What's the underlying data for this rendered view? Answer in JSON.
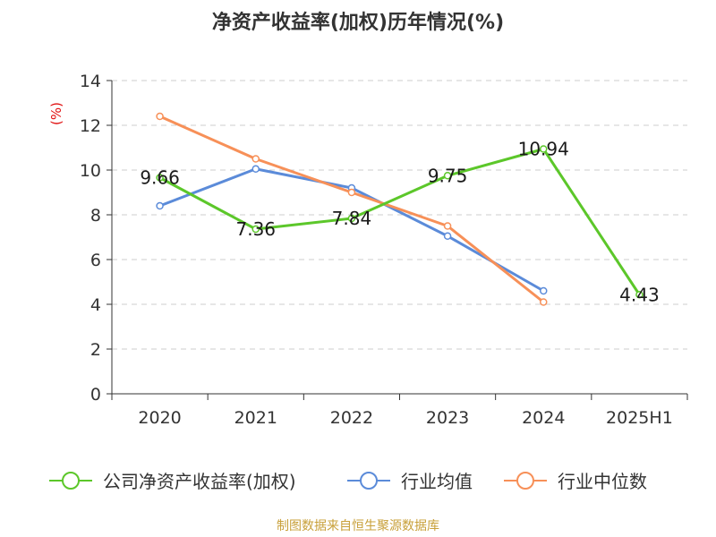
{
  "chart_data": {
    "type": "line",
    "title": "净资产收益率(加权)历年情况(%)",
    "ylabel": "(%)",
    "ylim": [
      0,
      14
    ],
    "yticks": [
      0,
      2,
      4,
      6,
      8,
      10,
      12,
      14
    ],
    "grid": true,
    "legend_position": "bottom",
    "categories": [
      "2020",
      "2021",
      "2022",
      "2023",
      "2024",
      "2025H1"
    ],
    "series": [
      {
        "name": "公司净资产收益率(加权)",
        "color": "#5cc72a",
        "values": [
          9.66,
          7.36,
          7.84,
          9.75,
          10.94,
          4.43
        ],
        "labels": [
          "9.66",
          "7.36",
          "7.84",
          "9.75",
          "10.94",
          "4.43"
        ]
      },
      {
        "name": "行业均值",
        "color": "#5b8bd9",
        "values": [
          8.4,
          10.05,
          9.2,
          7.05,
          4.6,
          null
        ]
      },
      {
        "name": "行业中位数",
        "color": "#f79058",
        "values": [
          12.4,
          10.5,
          9.0,
          7.5,
          4.1,
          null
        ]
      }
    ]
  },
  "source": "制图数据来自恒生聚源数据库"
}
